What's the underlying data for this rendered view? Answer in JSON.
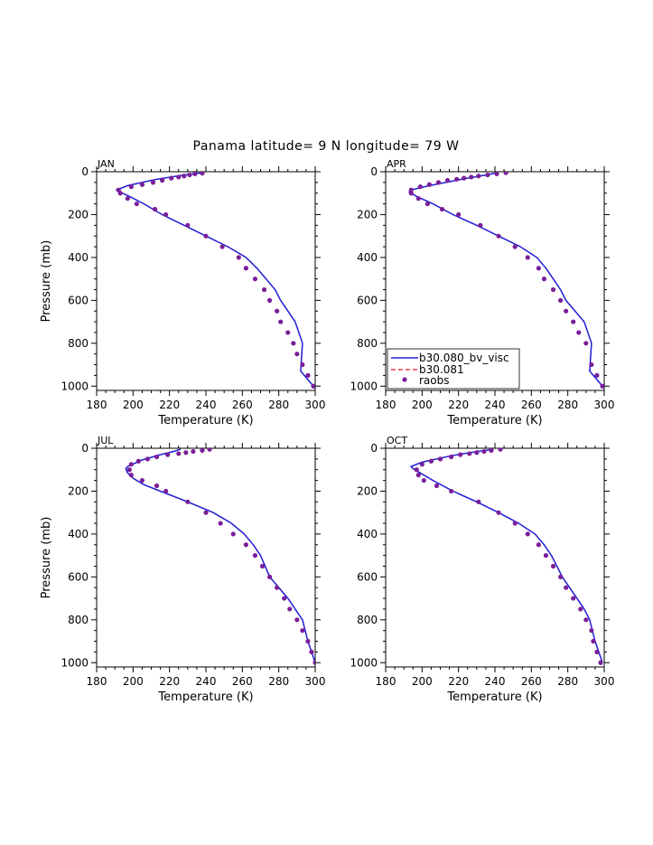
{
  "title": "Panama  latitude= 9 N longitude= 79 W",
  "colors": {
    "model1": "#2020d8",
    "model2": "#e02020",
    "obs": "#7a1f9a"
  },
  "legend": {
    "location": "lower-left of APR panel",
    "entries": [
      "b30.080_bv_visc",
      "b30.081",
      "raobs"
    ]
  },
  "chart_data": [
    {
      "type": "line",
      "panel": "JAN",
      "xlabel": "Temperature (K)",
      "ylabel": "Pressure (mb)",
      "xlim": [
        180,
        300
      ],
      "ylim": [
        1020,
        0
      ],
      "xticks": [
        180,
        200,
        220,
        240,
        260,
        280,
        300
      ],
      "yticks": [
        0,
        200,
        400,
        600,
        800,
        1000
      ],
      "series": [
        {
          "name": "b30.080_bv_visc",
          "style": "solid",
          "x": [
            238,
            228,
            213,
            197,
            191,
            193,
            198,
            206,
            216,
            228,
            240,
            252,
            262,
            268,
            273,
            278,
            281,
            285,
            289,
            291,
            293,
            292,
            298,
            300
          ],
          "y": [
            5,
            15,
            35,
            65,
            85,
            95,
            115,
            150,
            200,
            250,
            300,
            350,
            400,
            450,
            500,
            550,
            600,
            650,
            700,
            750,
            800,
            930,
            990,
            1010
          ]
        },
        {
          "name": "b30.081",
          "style": "dashed",
          "x": [
            238,
            228,
            213,
            197,
            191,
            193,
            198,
            206,
            216,
            228,
            240,
            252,
            262,
            268,
            273,
            278,
            281,
            285,
            289,
            291,
            293,
            292,
            298,
            300
          ],
          "y": [
            5,
            15,
            35,
            65,
            85,
            95,
            115,
            150,
            200,
            250,
            300,
            350,
            400,
            450,
            500,
            550,
            600,
            650,
            700,
            750,
            800,
            930,
            990,
            1010
          ]
        },
        {
          "name": "raobs",
          "style": "points",
          "x": [
            238,
            234,
            231,
            228,
            225,
            221,
            216,
            211,
            205,
            199,
            192,
            193,
            197,
            202,
            212,
            218,
            230,
            240,
            249,
            258,
            262,
            267,
            272,
            275,
            279,
            281,
            285,
            288,
            290,
            293,
            296,
            299
          ],
          "y": [
            7,
            10,
            15,
            20,
            25,
            30,
            40,
            50,
            60,
            70,
            85,
            100,
            125,
            150,
            175,
            200,
            250,
            300,
            350,
            400,
            450,
            500,
            550,
            600,
            650,
            700,
            750,
            800,
            850,
            900,
            950,
            1000
          ]
        }
      ]
    },
    {
      "type": "line",
      "panel": "APR",
      "xlabel": "Temperature (K)",
      "ylabel": "",
      "xlim": [
        180,
        300
      ],
      "ylim": [
        1020,
        0
      ],
      "xticks": [
        180,
        200,
        220,
        240,
        260,
        280,
        300
      ],
      "yticks": [
        0,
        200,
        400,
        600,
        800,
        1000
      ],
      "series": [
        {
          "name": "b30.080_bv_visc",
          "style": "solid",
          "x": [
            241,
            235,
            222,
            204,
            194,
            193,
            197,
            206,
            217,
            230,
            242,
            254,
            263,
            268,
            272,
            276,
            279,
            284,
            289,
            291,
            293,
            292,
            298,
            300
          ],
          "y": [
            5,
            15,
            35,
            65,
            85,
            95,
            115,
            150,
            200,
            250,
            300,
            350,
            400,
            450,
            500,
            550,
            600,
            650,
            700,
            750,
            800,
            930,
            990,
            1010
          ]
        },
        {
          "name": "b30.081",
          "style": "dashed",
          "x": [
            241,
            235,
            222,
            204,
            194,
            193,
            197,
            206,
            217,
            230,
            242,
            254,
            263,
            268,
            272,
            276,
            279,
            284,
            289,
            291,
            293,
            292,
            298,
            300
          ],
          "y": [
            5,
            15,
            35,
            65,
            85,
            95,
            115,
            150,
            200,
            250,
            300,
            350,
            400,
            450,
            500,
            550,
            600,
            650,
            700,
            750,
            800,
            930,
            990,
            1010
          ]
        },
        {
          "name": "raobs",
          "style": "points",
          "x": [
            246,
            241,
            236,
            231,
            227,
            223,
            219,
            214,
            209,
            204,
            199,
            194,
            194,
            198,
            203,
            211,
            220,
            232,
            242,
            251,
            258,
            264,
            267,
            272,
            276,
            279,
            283,
            286,
            290,
            293,
            296,
            299
          ],
          "y": [
            5,
            10,
            15,
            20,
            25,
            30,
            35,
            40,
            50,
            60,
            70,
            85,
            100,
            125,
            150,
            175,
            200,
            250,
            300,
            350,
            400,
            450,
            500,
            550,
            600,
            650,
            700,
            750,
            800,
            900,
            950,
            1000
          ]
        }
      ]
    },
    {
      "type": "line",
      "panel": "JUL",
      "xlabel": "Temperature (K)",
      "ylabel": "Pressure (mb)",
      "xlim": [
        180,
        300
      ],
      "ylim": [
        1020,
        0
      ],
      "xticks": [
        180,
        200,
        220,
        240,
        260,
        280,
        300
      ],
      "yticks": [
        0,
        200,
        400,
        600,
        800,
        1000
      ],
      "series": [
        {
          "name": "b30.080_bv_visc",
          "style": "solid",
          "x": [
            226,
            222,
            215,
            205,
            197,
            196,
            197,
            200,
            206,
            215,
            230,
            244,
            254,
            261,
            266,
            270,
            275,
            280,
            285,
            289,
            293,
            296,
            298,
            300
          ],
          "y": [
            5,
            15,
            30,
            55,
            85,
            95,
            115,
            140,
            170,
            200,
            250,
            300,
            350,
            400,
            450,
            500,
            600,
            650,
            700,
            750,
            800,
            900,
            950,
            1000
          ]
        },
        {
          "name": "b30.081",
          "style": "dashed",
          "x": [
            226,
            222,
            215,
            205,
            197,
            196,
            197,
            200,
            206,
            215,
            230,
            244,
            254,
            261,
            266,
            270,
            275,
            280,
            285,
            289,
            293,
            296,
            298,
            300
          ],
          "y": [
            5,
            15,
            30,
            55,
            85,
            95,
            115,
            140,
            170,
            200,
            250,
            300,
            350,
            400,
            450,
            500,
            600,
            650,
            700,
            750,
            800,
            900,
            950,
            1000
          ]
        },
        {
          "name": "raobs",
          "style": "points",
          "x": [
            242,
            238,
            233,
            229,
            225,
            219,
            213,
            208,
            203,
            199,
            198,
            199,
            205,
            213,
            218,
            230,
            240,
            248,
            255,
            262,
            267,
            271,
            275,
            279,
            283,
            286,
            290,
            293,
            296,
            298,
            300
          ],
          "y": [
            5,
            10,
            15,
            20,
            25,
            30,
            40,
            50,
            60,
            75,
            100,
            125,
            150,
            175,
            200,
            250,
            300,
            350,
            400,
            450,
            500,
            550,
            600,
            650,
            700,
            750,
            800,
            850,
            900,
            950,
            1000
          ]
        }
      ]
    },
    {
      "type": "line",
      "panel": "OCT",
      "xlabel": "Temperature (K)",
      "ylabel": "",
      "xlim": [
        180,
        300
      ],
      "ylim": [
        1020,
        0
      ],
      "xticks": [
        180,
        200,
        220,
        240,
        260,
        280,
        300
      ],
      "yticks": [
        0,
        200,
        400,
        600,
        800,
        1000
      ],
      "series": [
        {
          "name": "b30.080_bv_visc",
          "style": "solid",
          "x": [
            239,
            230,
            216,
            200,
            194,
            195,
            199,
            206,
            217,
            230,
            242,
            253,
            262,
            267,
            271,
            274,
            277,
            281,
            285,
            289,
            292,
            295,
            297,
            299
          ],
          "y": [
            5,
            15,
            35,
            65,
            85,
            95,
            115,
            150,
            200,
            250,
            300,
            350,
            400,
            450,
            500,
            550,
            600,
            650,
            700,
            750,
            800,
            900,
            950,
            1000
          ]
        },
        {
          "name": "b30.081",
          "style": "dashed",
          "x": [
            239,
            230,
            216,
            200,
            194,
            195,
            199,
            206,
            217,
            230,
            242,
            253,
            262,
            267,
            271,
            274,
            277,
            281,
            285,
            289,
            292,
            295,
            297,
            299
          ],
          "y": [
            5,
            15,
            35,
            65,
            85,
            95,
            115,
            150,
            200,
            250,
            300,
            350,
            400,
            450,
            500,
            550,
            600,
            650,
            700,
            750,
            800,
            900,
            950,
            1000
          ]
        },
        {
          "name": "raobs",
          "style": "points",
          "x": [
            243,
            238,
            234,
            230,
            226,
            221,
            216,
            210,
            205,
            200,
            197,
            198,
            201,
            208,
            216,
            231,
            242,
            251,
            258,
            264,
            268,
            272,
            276,
            279,
            283,
            287,
            290,
            293,
            294,
            296,
            298
          ],
          "y": [
            5,
            10,
            15,
            20,
            25,
            30,
            40,
            50,
            60,
            75,
            100,
            125,
            150,
            175,
            200,
            250,
            300,
            350,
            400,
            450,
            500,
            550,
            600,
            650,
            700,
            750,
            800,
            850,
            900,
            950,
            1000
          ]
        }
      ]
    }
  ]
}
